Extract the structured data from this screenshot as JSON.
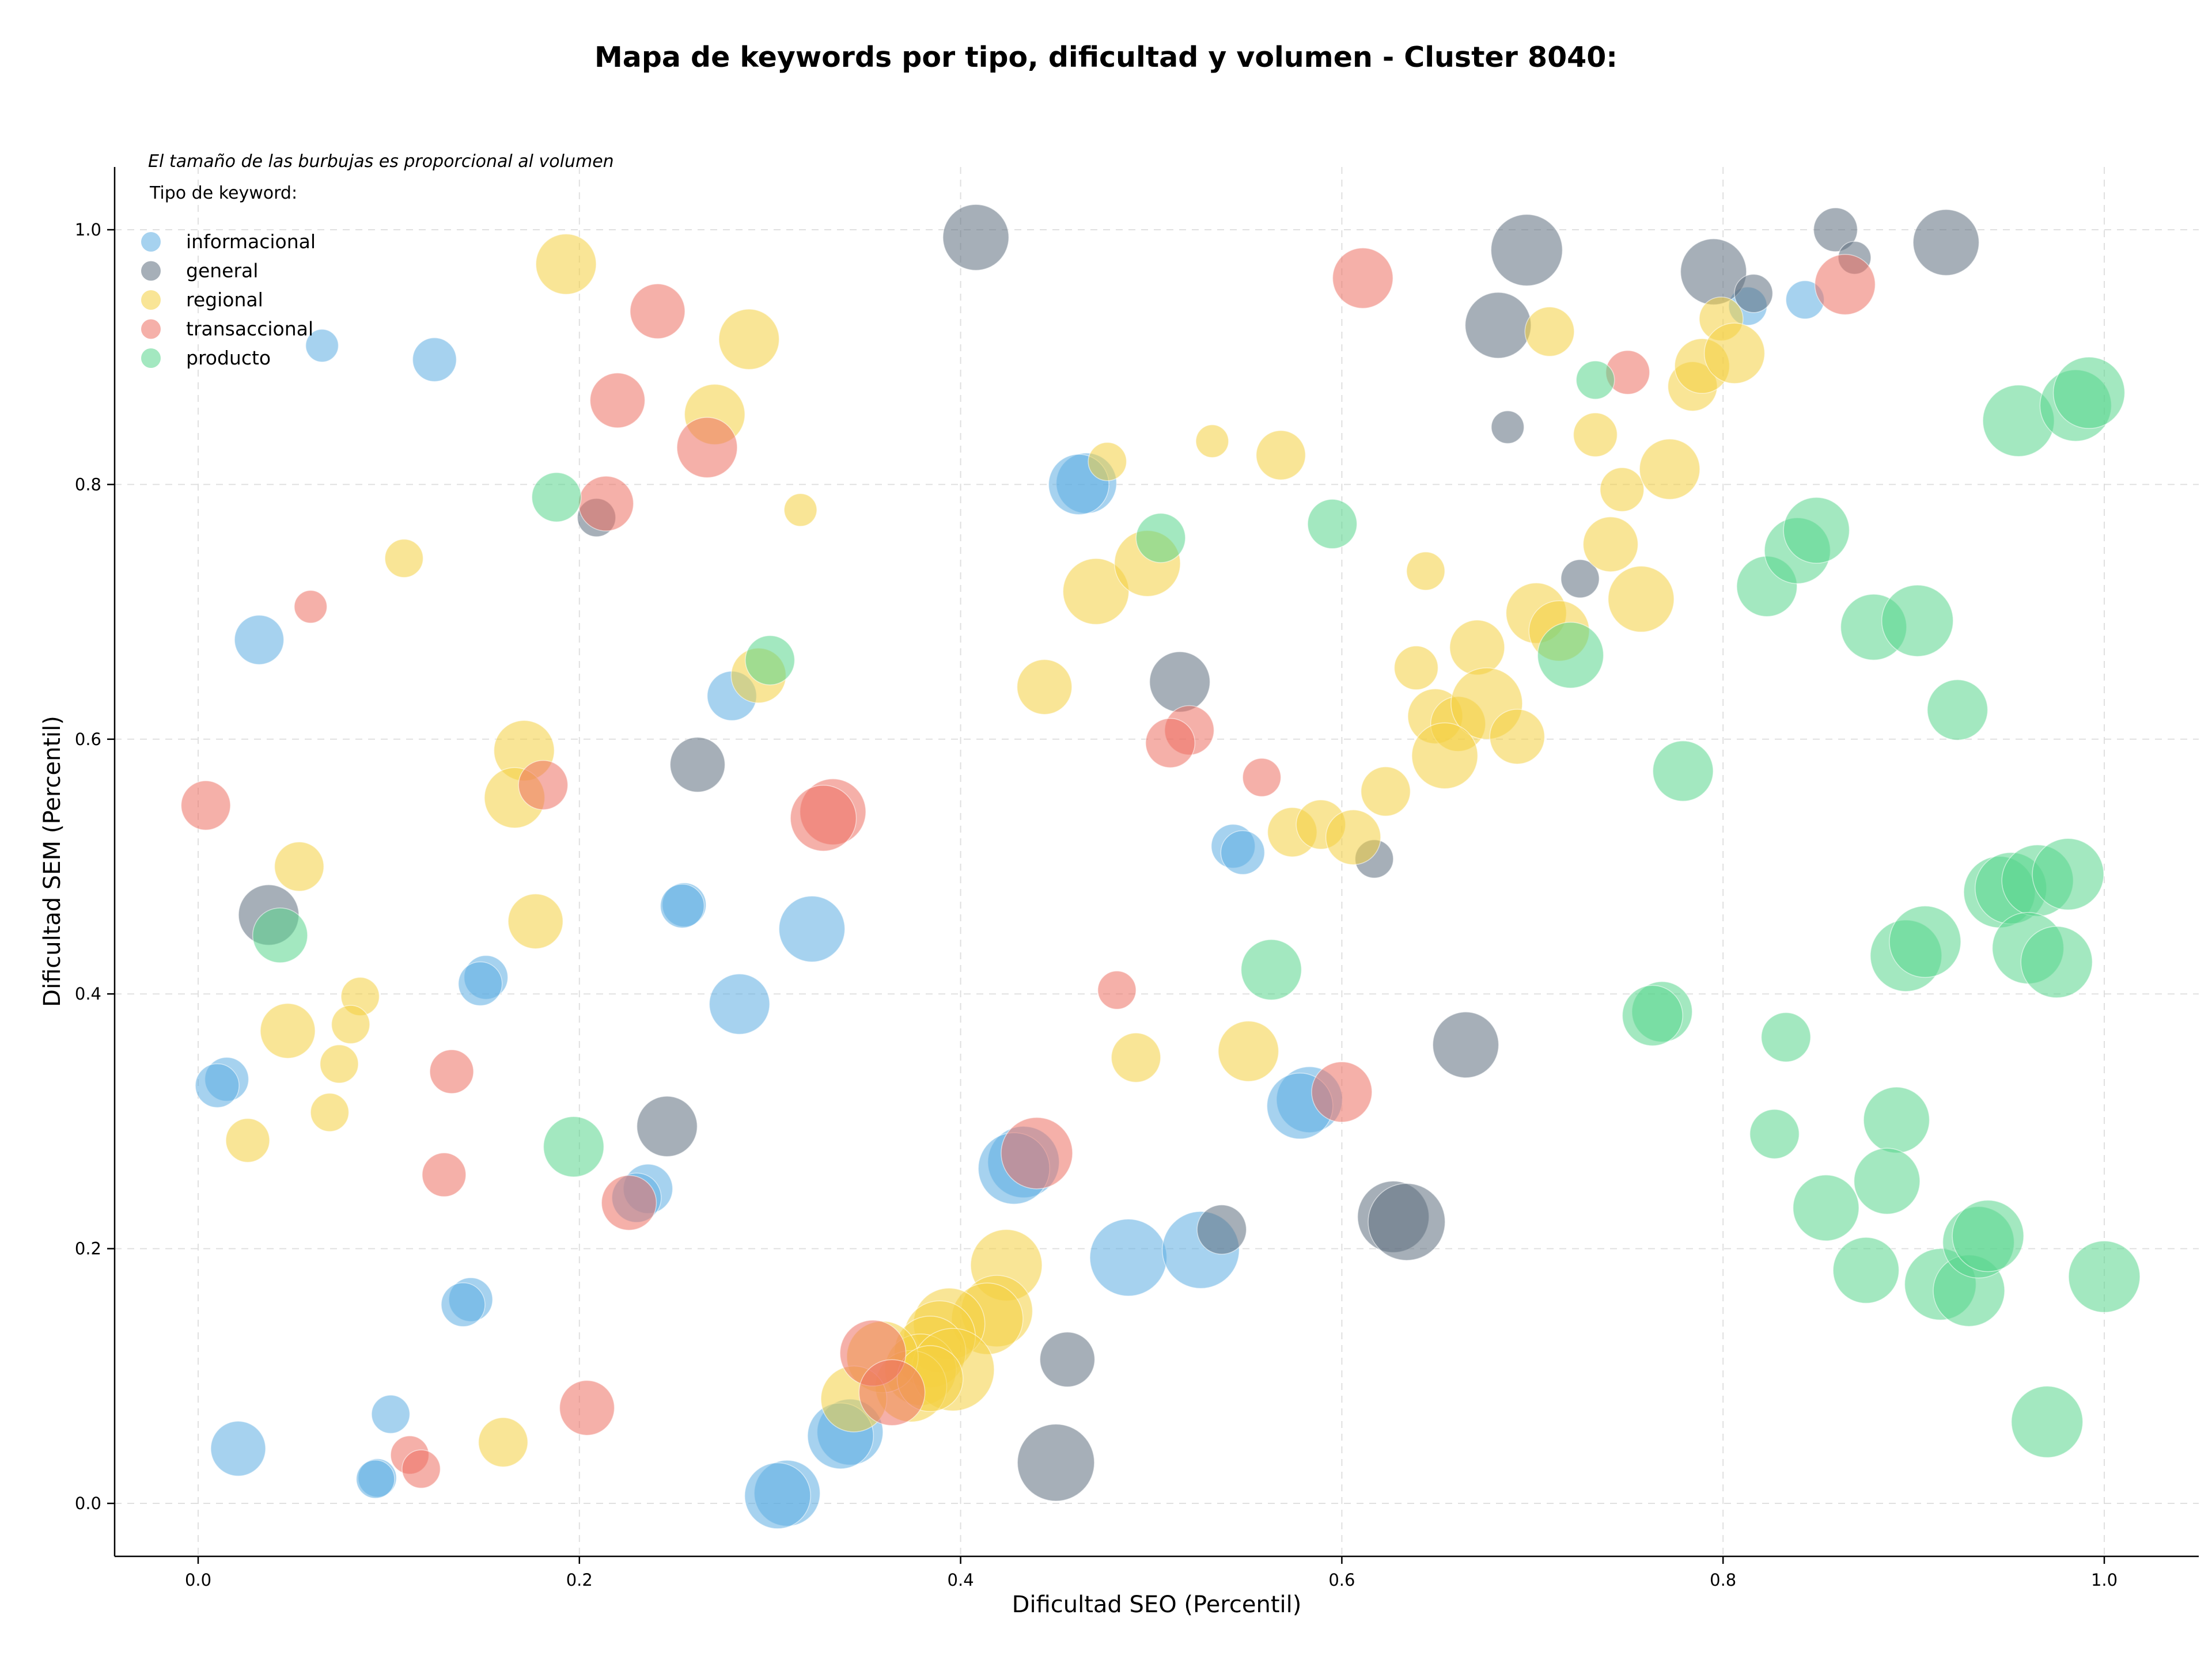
{
  "chart_data": {
    "type": "scatter",
    "title": "Mapa de keywords por tipo, dificultad y volumen - Cluster 8040:",
    "xlabel": "Dificultad SEO (Percentil)",
    "ylabel": "Dificultad SEM (Percentil)",
    "xlim": [
      -0.04,
      1.05
    ],
    "ylim": [
      -0.04,
      1.05
    ],
    "x_ticks": [
      "0.0",
      "0.2",
      "0.4",
      "0.6",
      "0.8",
      "1.0"
    ],
    "y_ticks": [
      "0.0",
      "0.2",
      "0.4",
      "0.6",
      "0.8",
      "1.0"
    ],
    "grid": true,
    "note": "El tamaño de las burbujas es proporcional al volumen",
    "legend_title": "Tipo de keyword:",
    "legend_placement": "top-left",
    "series": [
      {
        "name": "informacional",
        "color": "#5dade2",
        "points": [
          [
            0.065,
            0.909,
            3
          ],
          [
            0.124,
            0.898,
            5
          ],
          [
            0.032,
            0.678,
            6
          ],
          [
            0.28,
            0.634,
            6
          ],
          [
            0.015,
            0.333,
            5
          ],
          [
            0.01,
            0.328,
            5
          ],
          [
            0.151,
            0.413,
            5
          ],
          [
            0.148,
            0.408,
            5
          ],
          [
            0.255,
            0.47,
            5
          ],
          [
            0.254,
            0.469,
            5
          ],
          [
            0.322,
            0.451,
            9
          ],
          [
            0.284,
            0.392,
            8
          ],
          [
            0.101,
            0.07,
            4
          ],
          [
            0.094,
            0.02,
            4
          ],
          [
            0.093,
            0.019,
            4
          ],
          [
            0.021,
            0.043,
            7
          ],
          [
            0.143,
            0.16,
            5
          ],
          [
            0.139,
            0.156,
            5
          ],
          [
            0.236,
            0.247,
            6
          ],
          [
            0.23,
            0.24,
            6
          ],
          [
            0.309,
            0.008,
            9
          ],
          [
            0.304,
            0.006,
            9
          ],
          [
            0.342,
            0.056,
            9
          ],
          [
            0.337,
            0.053,
            9
          ],
          [
            0.433,
            0.268,
            10
          ],
          [
            0.428,
            0.263,
            10
          ],
          [
            0.466,
            0.801,
            8
          ],
          [
            0.462,
            0.8,
            8
          ],
          [
            0.488,
            0.193,
            11
          ],
          [
            0.526,
            0.199,
            11
          ],
          [
            0.543,
            0.516,
            5
          ],
          [
            0.548,
            0.511,
            5
          ],
          [
            0.583,
            0.317,
            9
          ],
          [
            0.578,
            0.312,
            9
          ],
          [
            0.813,
            0.94,
            4
          ],
          [
            0.843,
            0.945,
            4
          ]
        ]
      },
      {
        "name": "general",
        "color": "#5d6d7e",
        "points": [
          [
            0.408,
            0.994,
            9
          ],
          [
            0.697,
            0.984,
            10
          ],
          [
            0.795,
            0.967,
            9
          ],
          [
            0.917,
            0.99,
            9
          ],
          [
            0.859,
            1.0,
            5
          ],
          [
            0.869,
            0.978,
            3
          ],
          [
            0.816,
            0.95,
            4
          ],
          [
            0.682,
            0.925,
            9
          ],
          [
            0.687,
            0.845,
            3
          ],
          [
            0.209,
            0.774,
            4
          ],
          [
            0.725,
            0.726,
            4
          ],
          [
            0.515,
            0.645,
            8
          ],
          [
            0.262,
            0.58,
            7
          ],
          [
            0.037,
            0.462,
            8
          ],
          [
            0.617,
            0.506,
            4
          ],
          [
            0.665,
            0.36,
            9
          ],
          [
            0.246,
            0.296,
            8
          ],
          [
            0.627,
            0.225,
            10
          ],
          [
            0.634,
            0.221,
            11
          ],
          [
            0.537,
            0.215,
            6
          ],
          [
            0.456,
            0.113,
            7
          ],
          [
            0.45,
            0.032,
            11
          ]
        ]
      },
      {
        "name": "regional",
        "color": "#f4d03f",
        "points": [
          [
            0.193,
            0.973,
            8
          ],
          [
            0.289,
            0.914,
            8
          ],
          [
            0.271,
            0.855,
            8
          ],
          [
            0.316,
            0.78,
            3
          ],
          [
            0.108,
            0.742,
            4
          ],
          [
            0.477,
            0.818,
            4
          ],
          [
            0.532,
            0.834,
            3
          ],
          [
            0.568,
            0.823,
            6
          ],
          [
            0.471,
            0.716,
            9
          ],
          [
            0.498,
            0.738,
            9
          ],
          [
            0.444,
            0.641,
            7
          ],
          [
            0.294,
            0.65,
            7
          ],
          [
            0.171,
            0.591,
            8
          ],
          [
            0.166,
            0.554,
            8
          ],
          [
            0.053,
            0.5,
            6
          ],
          [
            0.177,
            0.457,
            7
          ],
          [
            0.085,
            0.398,
            4
          ],
          [
            0.08,
            0.376,
            4
          ],
          [
            0.047,
            0.371,
            7
          ],
          [
            0.074,
            0.345,
            4
          ],
          [
            0.069,
            0.307,
            4
          ],
          [
            0.026,
            0.285,
            5
          ],
          [
            0.16,
            0.048,
            6
          ],
          [
            0.492,
            0.35,
            6
          ],
          [
            0.551,
            0.355,
            8
          ],
          [
            0.574,
            0.527,
            6
          ],
          [
            0.589,
            0.533,
            6
          ],
          [
            0.606,
            0.523,
            7
          ],
          [
            0.623,
            0.559,
            6
          ],
          [
            0.644,
            0.732,
            4
          ],
          [
            0.639,
            0.656,
            5
          ],
          [
            0.671,
            0.672,
            7
          ],
          [
            0.649,
            0.618,
            7
          ],
          [
            0.661,
            0.612,
            7
          ],
          [
            0.676,
            0.628,
            10
          ],
          [
            0.654,
            0.587,
            9
          ],
          [
            0.692,
            0.602,
            7
          ],
          [
            0.702,
            0.699,
            8
          ],
          [
            0.714,
            0.685,
            8
          ],
          [
            0.709,
            0.92,
            6
          ],
          [
            0.733,
            0.839,
            5
          ],
          [
            0.741,
            0.753,
            7
          ],
          [
            0.747,
            0.796,
            5
          ],
          [
            0.757,
            0.71,
            9
          ],
          [
            0.772,
            0.812,
            8
          ],
          [
            0.784,
            0.877,
            6
          ],
          [
            0.789,
            0.893,
            7
          ],
          [
            0.799,
            0.93,
            5
          ],
          [
            0.806,
            0.903,
            8
          ],
          [
            0.424,
            0.187,
            10
          ],
          [
            0.419,
            0.151,
            10
          ],
          [
            0.414,
            0.145,
            10
          ],
          [
            0.394,
            0.141,
            10
          ],
          [
            0.389,
            0.131,
            10
          ],
          [
            0.384,
            0.119,
            10
          ],
          [
            0.379,
            0.105,
            10
          ],
          [
            0.396,
            0.105,
            12
          ],
          [
            0.374,
            0.092,
            10
          ],
          [
            0.359,
            0.115,
            10
          ],
          [
            0.344,
            0.082,
            9
          ],
          [
            0.384,
            0.098,
            9
          ]
        ]
      },
      {
        "name": "transaccional",
        "color": "#ec7063",
        "points": [
          [
            0.241,
            0.936,
            7
          ],
          [
            0.22,
            0.866,
            7
          ],
          [
            0.267,
            0.829,
            8
          ],
          [
            0.214,
            0.785,
            7
          ],
          [
            0.059,
            0.704,
            3
          ],
          [
            0.004,
            0.548,
            6
          ],
          [
            0.181,
            0.564,
            6
          ],
          [
            0.333,
            0.543,
            9
          ],
          [
            0.328,
            0.538,
            9
          ],
          [
            0.52,
            0.607,
            6
          ],
          [
            0.51,
            0.597,
            6
          ],
          [
            0.558,
            0.57,
            4
          ],
          [
            0.611,
            0.962,
            8
          ],
          [
            0.75,
            0.888,
            5
          ],
          [
            0.864,
            0.957,
            8
          ],
          [
            0.482,
            0.403,
            4
          ],
          [
            0.133,
            0.339,
            5
          ],
          [
            0.129,
            0.258,
            5
          ],
          [
            0.226,
            0.236,
            7
          ],
          [
            0.44,
            0.275,
            10
          ],
          [
            0.6,
            0.323,
            8
          ],
          [
            0.204,
            0.075,
            7
          ],
          [
            0.111,
            0.038,
            4
          ],
          [
            0.117,
            0.027,
            4
          ],
          [
            0.354,
            0.118,
            9
          ],
          [
            0.364,
            0.087,
            9
          ]
        ]
      },
      {
        "name": "producto",
        "color": "#58d68d",
        "points": [
          [
            0.188,
            0.79,
            6
          ],
          [
            0.3,
            0.662,
            6
          ],
          [
            0.043,
            0.446,
            7
          ],
          [
            0.197,
            0.28,
            8
          ],
          [
            0.505,
            0.758,
            6
          ],
          [
            0.595,
            0.769,
            6
          ],
          [
            0.733,
            0.882,
            4
          ],
          [
            0.72,
            0.666,
            9
          ],
          [
            0.563,
            0.419,
            8
          ],
          [
            0.779,
            0.575,
            8
          ],
          [
            0.768,
            0.386,
            8
          ],
          [
            0.763,
            0.383,
            8
          ],
          [
            0.833,
            0.366,
            6
          ],
          [
            0.827,
            0.29,
            6
          ],
          [
            0.823,
            0.72,
            8
          ],
          [
            0.839,
            0.748,
            9
          ],
          [
            0.849,
            0.764,
            9
          ],
          [
            0.879,
            0.688,
            9
          ],
          [
            0.902,
            0.693,
            10
          ],
          [
            0.923,
            0.623,
            8
          ],
          [
            0.955,
            0.85,
            10
          ],
          [
            0.985,
            0.862,
            10
          ],
          [
            0.992,
            0.872,
            10
          ],
          [
            0.945,
            0.48,
            10
          ],
          [
            0.951,
            0.483,
            10
          ],
          [
            0.965,
            0.489,
            10
          ],
          [
            0.981,
            0.494,
            10
          ],
          [
            0.896,
            0.43,
            10
          ],
          [
            0.906,
            0.441,
            10
          ],
          [
            0.96,
            0.436,
            10
          ],
          [
            0.975,
            0.425,
            10
          ],
          [
            0.891,
            0.301,
            9
          ],
          [
            0.886,
            0.253,
            9
          ],
          [
            0.854,
            0.232,
            9
          ],
          [
            0.875,
            0.183,
            9
          ],
          [
            0.914,
            0.172,
            10
          ],
          [
            0.929,
            0.167,
            10
          ],
          [
            0.934,
            0.205,
            10
          ],
          [
            0.939,
            0.21,
            10
          ],
          [
            1.0,
            0.178,
            10
          ],
          [
            0.97,
            0.064,
            10
          ]
        ]
      }
    ]
  }
}
